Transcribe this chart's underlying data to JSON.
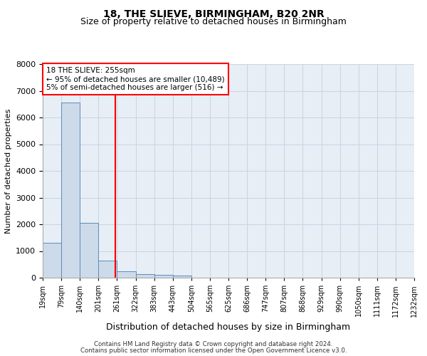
{
  "title": "18, THE SLIEVE, BIRMINGHAM, B20 2NR",
  "subtitle": "Size of property relative to detached houses in Birmingham",
  "xlabel": "Distribution of detached houses by size in Birmingham",
  "ylabel": "Number of detached properties",
  "footnote1": "Contains HM Land Registry data © Crown copyright and database right 2024.",
  "footnote2": "Contains public sector information licensed under the Open Government Licence v3.0.",
  "bar_values": [
    1300,
    6550,
    2050,
    650,
    250,
    130,
    100,
    75,
    0,
    0,
    0,
    0,
    0,
    0,
    0,
    0,
    0,
    0,
    0,
    0
  ],
  "bar_color": "#ccdaea",
  "bar_edge_color": "#5b8db8",
  "categories": [
    "19sqm",
    "79sqm",
    "140sqm",
    "201sqm",
    "261sqm",
    "322sqm",
    "383sqm",
    "443sqm",
    "504sqm",
    "565sqm",
    "625sqm",
    "686sqm",
    "747sqm",
    "807sqm",
    "868sqm",
    "929sqm",
    "990sqm",
    "1050sqm",
    "1111sqm",
    "1172sqm",
    "1232sqm"
  ],
  "ylim": [
    0,
    8000
  ],
  "yticks": [
    0,
    1000,
    2000,
    3000,
    4000,
    5000,
    6000,
    7000,
    8000
  ],
  "red_line_x": 3.89,
  "annotation_title": "18 THE SLIEVE: 255sqm",
  "annotation_line1": "← 95% of detached houses are smaller (10,489)",
  "annotation_line2": "5% of semi-detached houses are larger (516) →",
  "grid_color": "#c8d4e4",
  "bg_color": "#e8eef6",
  "title_fontsize": 10,
  "subtitle_fontsize": 9,
  "tick_fontsize": 7,
  "ylabel_fontsize": 8,
  "xlabel_fontsize": 9
}
